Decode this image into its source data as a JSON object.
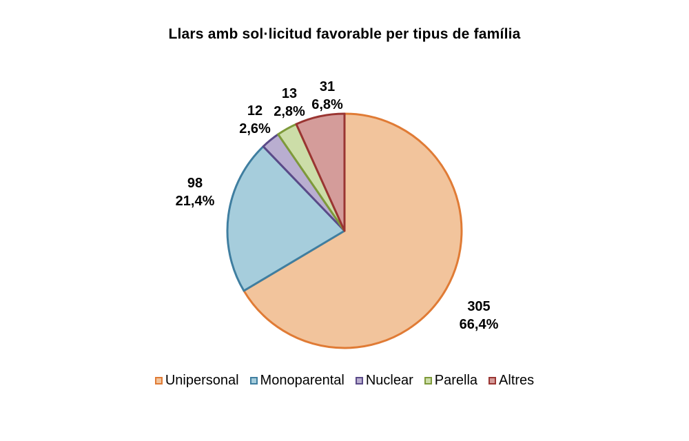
{
  "chart_data": {
    "type": "pie",
    "title": "Llars amb sol·licitud favorable per tipus de família",
    "slices": [
      {
        "name": "Unipersonal",
        "value": 305,
        "percent_label": "66,4%",
        "fill": "#F2C49C",
        "stroke": "#E07B35"
      },
      {
        "name": "Monoparental",
        "value": 98,
        "percent_label": "21,4%",
        "fill": "#A6CDDC",
        "stroke": "#3F7EA0"
      },
      {
        "name": "Nuclear",
        "value": 12,
        "percent_label": "2,6%",
        "fill": "#B9AED0",
        "stroke": "#5A4A88"
      },
      {
        "name": "Parella",
        "value": 13,
        "percent_label": "2,8%",
        "fill": "#CCDDA8",
        "stroke": "#7E9A3A"
      },
      {
        "name": "Altres",
        "value": 31,
        "percent_label": "6,8%",
        "fill": "#D49C9A",
        "stroke": "#9A3532"
      }
    ],
    "legend_position": "bottom",
    "start_angle_deg": 0,
    "direction": "clockwise"
  }
}
